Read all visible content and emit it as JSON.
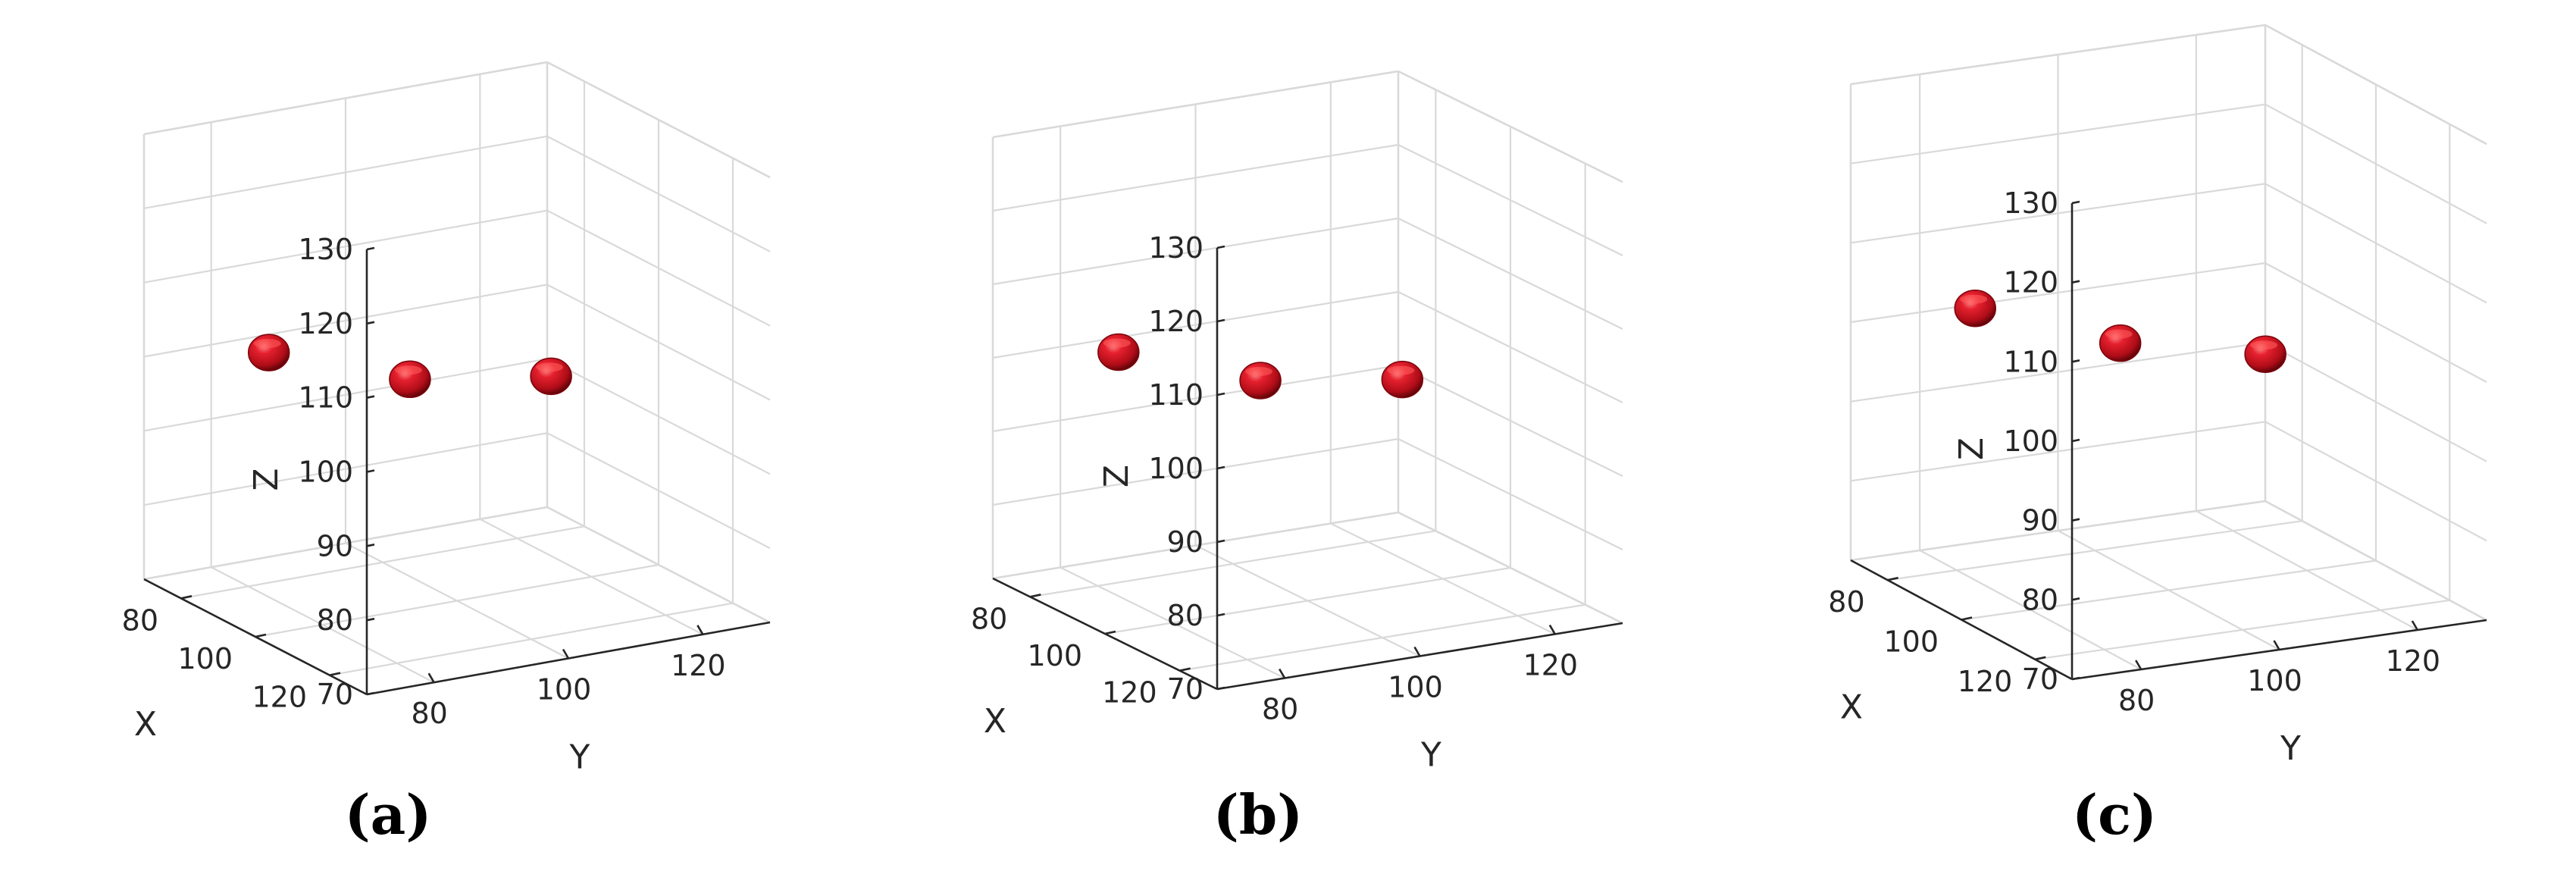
{
  "chart_data": [
    {
      "type": "scatter3d",
      "caption": "(a)",
      "xlabel": "X",
      "ylabel": "Y",
      "zlabel": "Z",
      "xticks": [
        80,
        100,
        120
      ],
      "yticks": [
        80,
        100,
        120
      ],
      "zticks": [
        70,
        80,
        90,
        100,
        110,
        120,
        130
      ],
      "xlim": [
        70,
        130
      ],
      "ylim": [
        70,
        130
      ],
      "zlim": [
        70,
        130
      ],
      "grid": true,
      "marker_color": "#c8101e",
      "points": [
        {
          "x": 100,
          "y": 72,
          "z": 108
        },
        {
          "x": 100,
          "y": 93,
          "z": 101
        },
        {
          "x": 100,
          "y": 114,
          "z": 98
        }
      ]
    },
    {
      "type": "scatter3d",
      "caption": "(b)",
      "xlabel": "X",
      "ylabel": "Y",
      "zlabel": "Z",
      "xticks": [
        80,
        100,
        120
      ],
      "yticks": [
        80,
        100,
        120
      ],
      "zticks": [
        70,
        80,
        90,
        100,
        110,
        120,
        130
      ],
      "xlim": [
        70,
        130
      ],
      "ylim": [
        70,
        130
      ],
      "zlim": [
        70,
        130
      ],
      "grid": true,
      "marker_color": "#c8101e",
      "points": [
        {
          "x": 100,
          "y": 72,
          "z": 108
        },
        {
          "x": 100,
          "y": 93,
          "z": 101
        },
        {
          "x": 100,
          "y": 114,
          "z": 98
        }
      ]
    },
    {
      "type": "scatter3d",
      "caption": "(c)",
      "xlabel": "X",
      "ylabel": "Y",
      "zlabel": "Z",
      "xticks": [
        80,
        100,
        120
      ],
      "yticks": [
        80,
        100,
        120
      ],
      "zticks": [
        70,
        80,
        90,
        100,
        110,
        120,
        130
      ],
      "xlim": [
        70,
        130
      ],
      "ylim": [
        70,
        130
      ],
      "zlim": [
        70,
        130
      ],
      "grid": true,
      "marker_color": "#c8101e",
      "points": [
        {
          "x": 100,
          "y": 72,
          "z": 109
        },
        {
          "x": 100,
          "y": 93,
          "z": 102
        },
        {
          "x": 100,
          "y": 114,
          "z": 98
        }
      ]
    }
  ]
}
